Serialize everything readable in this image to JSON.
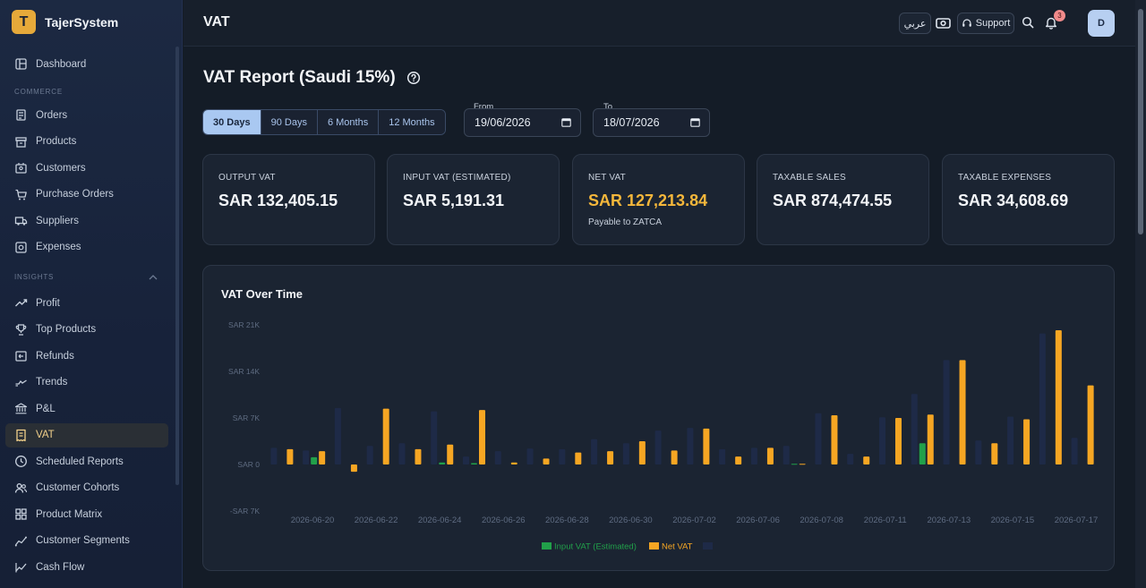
{
  "brand": {
    "logo_letter": "T",
    "name": "TajerSystem"
  },
  "sidebar": {
    "top": [
      {
        "label": "Dashboard",
        "icon": "dashboard-icon"
      }
    ],
    "commerce_label": "COMMERCE",
    "commerce": [
      {
        "label": "Orders",
        "icon": "orders-icon"
      },
      {
        "label": "Products",
        "icon": "products-icon"
      },
      {
        "label": "Customers",
        "icon": "customers-icon"
      },
      {
        "label": "Purchase Orders",
        "icon": "cart-icon"
      },
      {
        "label": "Suppliers",
        "icon": "truck-icon"
      },
      {
        "label": "Expenses",
        "icon": "expenses-icon"
      }
    ],
    "insights_label": "INSIGHTS",
    "insights": [
      {
        "label": "Profit",
        "icon": "trend-up-icon"
      },
      {
        "label": "Top Products",
        "icon": "trophy-icon"
      },
      {
        "label": "Refunds",
        "icon": "refund-icon"
      },
      {
        "label": "Trends",
        "icon": "trends-icon"
      },
      {
        "label": "P&L",
        "icon": "bank-icon"
      },
      {
        "label": "VAT",
        "icon": "receipt-icon",
        "active": true
      },
      {
        "label": "Scheduled Reports",
        "icon": "clock-icon"
      },
      {
        "label": "Customer Cohorts",
        "icon": "users-icon"
      },
      {
        "label": "Product Matrix",
        "icon": "grid-icon"
      },
      {
        "label": "Customer Segments",
        "icon": "segments-icon"
      },
      {
        "label": "Cash Flow",
        "icon": "cashflow-icon"
      }
    ]
  },
  "topbar": {
    "title": "VAT",
    "language": "عربي",
    "support": "Support",
    "notifications": "3",
    "avatar": "D"
  },
  "page": {
    "title": "VAT Report (Saudi 15%)",
    "ranges": [
      {
        "label": "30 Days",
        "active": true
      },
      {
        "label": "90 Days"
      },
      {
        "label": "6 Months"
      },
      {
        "label": "12 Months"
      }
    ],
    "from_label": "From",
    "from_value": "19/06/2026",
    "to_label": "To",
    "to_value": "18/07/2026"
  },
  "cards": [
    {
      "label": "OUTPUT VAT",
      "value": "SAR 132,405.15",
      "sub": ""
    },
    {
      "label": "INPUT VAT (ESTIMATED)",
      "value": "SAR 5,191.31",
      "sub": ""
    },
    {
      "label": "NET VAT",
      "value": "SAR 127,213.84",
      "sub": "Payable to ZATCA",
      "highlight": true
    },
    {
      "label": "TAXABLE SALES",
      "value": "SAR 874,474.55",
      "sub": ""
    },
    {
      "label": "TAXABLE EXPENSES",
      "value": "SAR 34,608.69",
      "sub": ""
    }
  ],
  "chart_data": {
    "type": "bar",
    "title": "VAT Over Time",
    "y_ticks": [
      "SAR 21K",
      "SAR 14K",
      "SAR 7K",
      "SAR 0",
      "-SAR 7K"
    ],
    "ylim": [
      -7000,
      21000
    ],
    "x_tick_labels": [
      "2026-06-20",
      "2026-06-22",
      "2026-06-24",
      "2026-06-26",
      "2026-06-28",
      "2026-06-30",
      "2026-07-02",
      "2026-07-06",
      "2026-07-08",
      "2026-07-11",
      "2026-07-13",
      "2026-07-15",
      "2026-07-17"
    ],
    "categories": [
      "2026-06-20",
      "2026-06-21",
      "2026-06-22",
      "2026-06-23",
      "2026-06-24",
      "2026-06-25",
      "2026-06-26",
      "2026-06-27",
      "2026-06-28",
      "2026-06-29",
      "2026-06-30",
      "2026-07-01",
      "2026-07-02",
      "2026-07-03",
      "2026-07-05",
      "2026-07-06",
      "2026-07-07",
      "2026-07-08",
      "2026-07-09",
      "2026-07-11",
      "2026-07-12",
      "2026-07-13",
      "2026-07-14",
      "2026-07-15",
      "2026-07-16",
      "2026-07-17"
    ],
    "series": [
      {
        "name": "",
        "color": "#1e2a47",
        "values": [
          2500,
          2100,
          8500,
          2800,
          3200,
          8000,
          1200,
          2000,
          2400,
          2300,
          3800,
          3200,
          5100,
          5500,
          2300,
          2500,
          2800,
          7700,
          1600,
          7100,
          10600,
          15700,
          3600,
          7200,
          19700,
          4000
        ]
      },
      {
        "name": "Input VAT (Estimated)",
        "color": "#21a04a",
        "values": [
          0,
          1100,
          0,
          0,
          0,
          300,
          200,
          0,
          0,
          0,
          0,
          0,
          0,
          0,
          0,
          0,
          100,
          0,
          0,
          0,
          3200,
          0,
          0,
          0,
          0,
          0
        ]
      },
      {
        "name": "Net VAT",
        "color": "#f6a623",
        "values": [
          2300,
          2000,
          -1100,
          8400,
          2300,
          3000,
          8200,
          300,
          900,
          1800,
          2000,
          3500,
          2100,
          5400,
          1200,
          2500,
          100,
          7400,
          1200,
          7000,
          7500,
          15700,
          3200,
          6800,
          20200,
          11900
        ]
      }
    ],
    "legend": [
      "Input VAT (Estimated)",
      "Net VAT"
    ],
    "legend_position": "bottom"
  }
}
